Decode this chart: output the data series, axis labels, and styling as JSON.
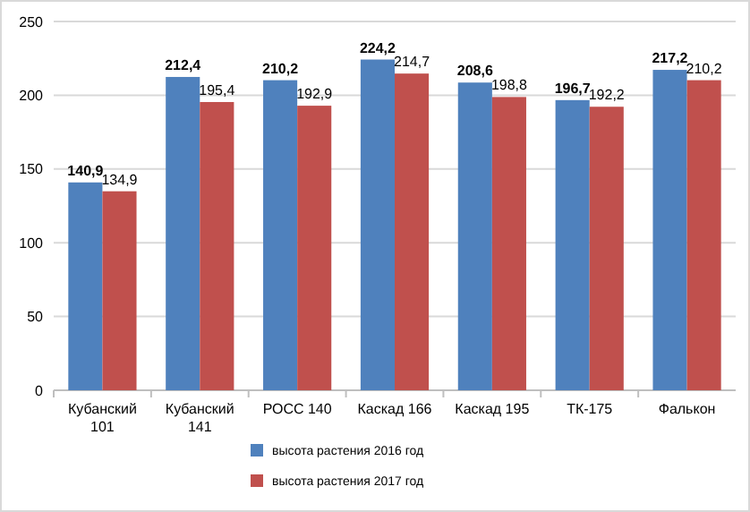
{
  "chart_data": {
    "type": "bar",
    "categories": [
      "Кубанский 101",
      "Кубанский 141",
      "РОСС 140",
      "Каскад 166",
      "Каскад 195",
      "ТК-175",
      "Фалькон"
    ],
    "series": [
      {
        "name": "высота растения 2016 год",
        "color": "#4f81bd",
        "values": [
          140.9,
          212.4,
          210.2,
          224.2,
          208.6,
          196.7,
          217.2
        ],
        "value_labels": [
          "140,9",
          "212,4",
          "210,2",
          "224,2",
          "208,6",
          "196,7",
          "217,2"
        ]
      },
      {
        "name": "высота растения 2017 год",
        "color": "#c0504d",
        "values": [
          134.9,
          195.4,
          192.9,
          214.7,
          198.8,
          192.2,
          210.2
        ],
        "value_labels": [
          "134,9",
          "195,4",
          "192,9",
          "214,7",
          "198,8",
          "192,2",
          "210,2"
        ]
      }
    ],
    "ylim": [
      0,
      250
    ],
    "yticks": [
      0,
      50,
      100,
      150,
      200,
      250
    ],
    "grid": "y",
    "legend": "bottom"
  }
}
